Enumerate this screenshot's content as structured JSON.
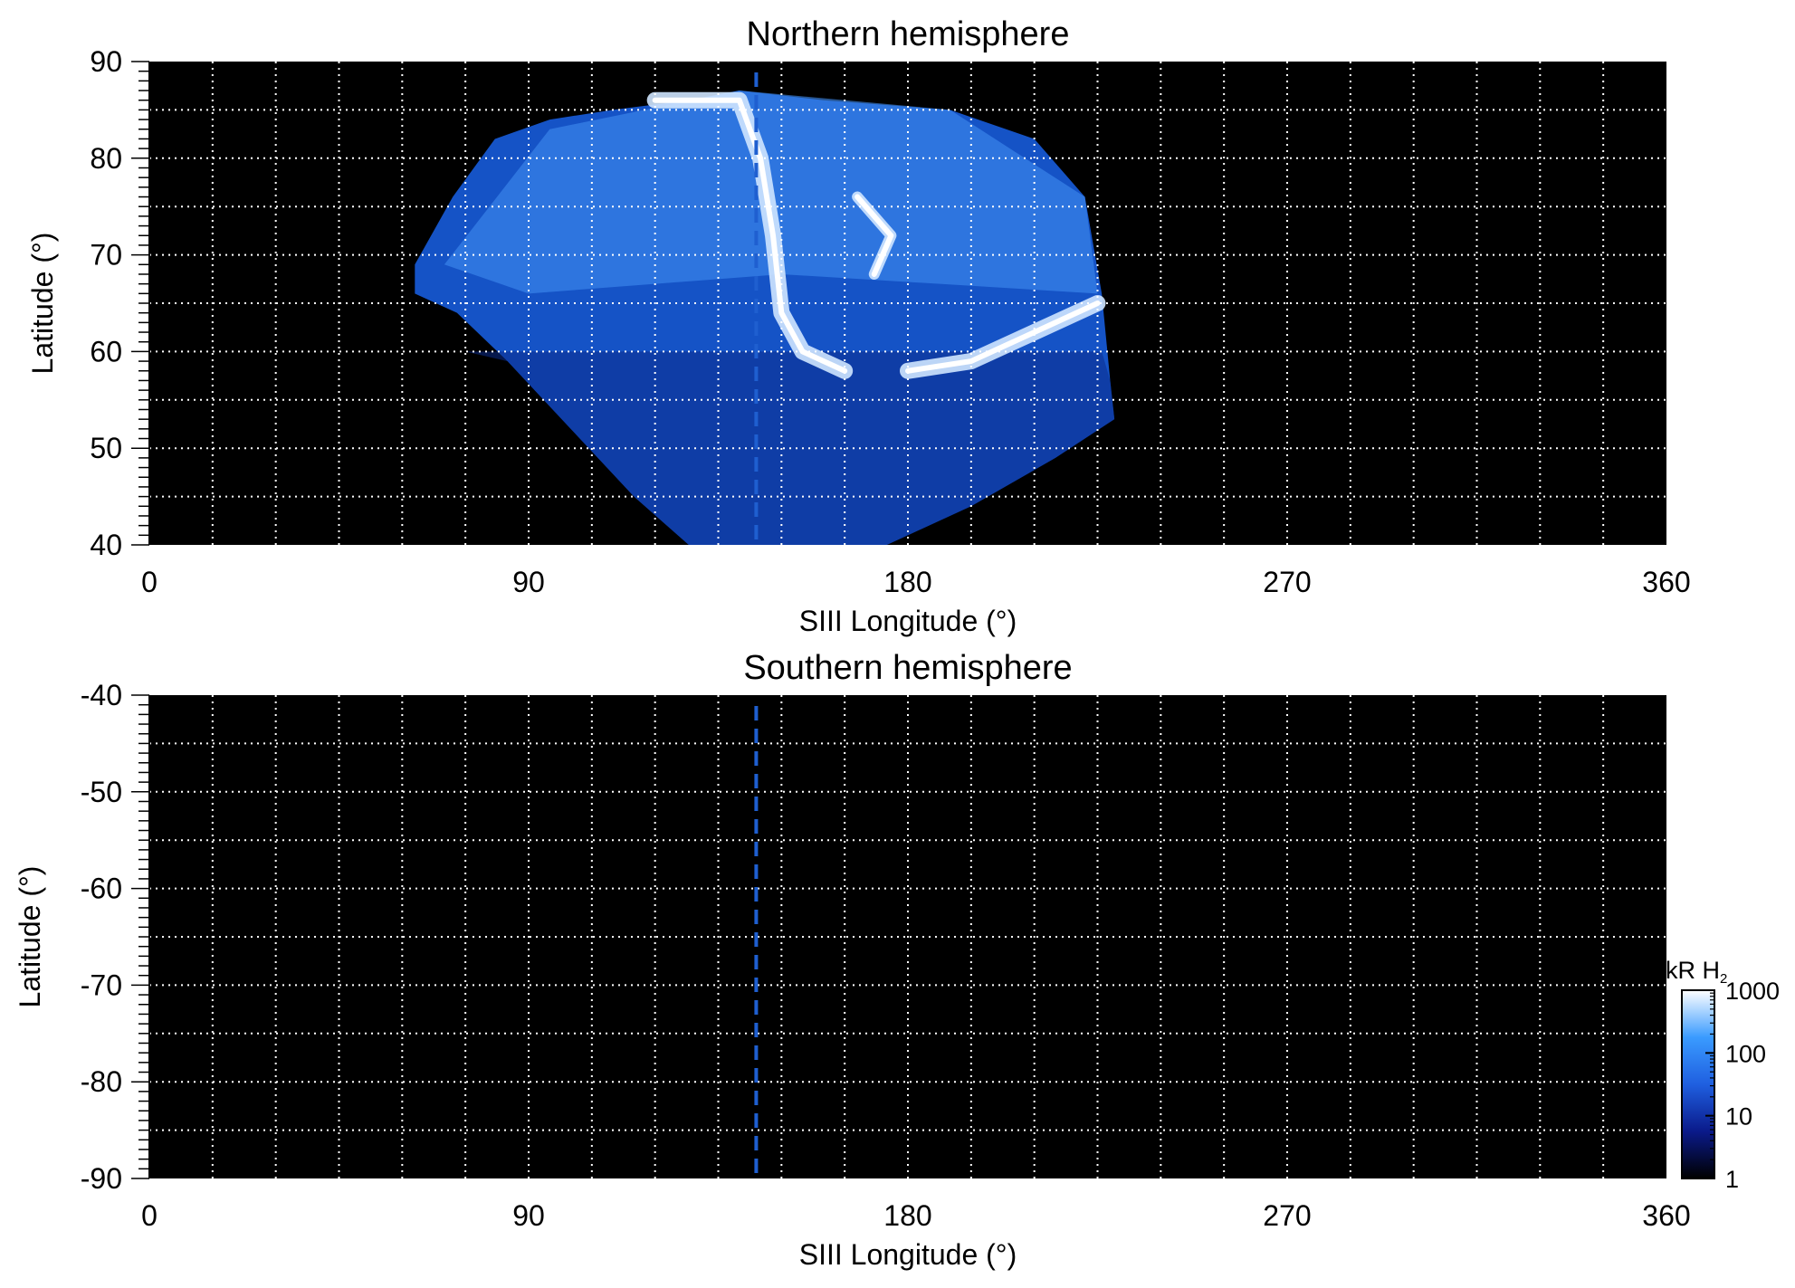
{
  "chart_data": [
    {
      "type": "heatmap",
      "title": "Northern hemisphere",
      "xlabel": "SIII Longitude (°)",
      "ylabel": "Latitude (°)",
      "xlim": [
        0,
        360
      ],
      "ylim": [
        40,
        90
      ],
      "xticks": [
        0,
        90,
        180,
        270,
        360
      ],
      "yticks": [
        40,
        50,
        60,
        70,
        80,
        90
      ],
      "xtick_labels": [
        "0",
        "90",
        "180",
        "270",
        "360"
      ],
      "ytick_labels": [
        "40",
        "50",
        "60",
        "70",
        "80",
        "90"
      ],
      "grid": true,
      "marker_longitude": 144,
      "coverage_region": {
        "lon_lat_outline": [
          [
            63,
            66
          ],
          [
            63,
            69
          ],
          [
            72,
            76
          ],
          [
            82,
            82
          ],
          [
            95,
            84
          ],
          [
            110,
            85
          ],
          [
            128,
            86
          ],
          [
            140,
            87
          ],
          [
            160,
            86
          ],
          [
            190,
            85
          ],
          [
            210,
            82
          ],
          [
            222,
            76
          ],
          [
            226,
            66
          ],
          [
            228,
            57
          ],
          [
            229,
            53
          ],
          [
            215,
            49
          ],
          [
            195,
            44
          ],
          [
            175,
            40
          ],
          [
            128,
            40
          ],
          [
            115,
            45
          ],
          [
            100,
            52
          ],
          [
            85,
            59
          ],
          [
            73,
            64
          ]
        ],
        "bright_features": [
          {
            "description_lon_lat": [
              [
                120,
                86
              ],
              [
                140,
                86
              ],
              [
                145,
                80
              ],
              [
                148,
                72
              ],
              [
                150,
                64
              ],
              [
                155,
                60
              ],
              [
                165,
                58
              ]
            ],
            "level_kR": 1000
          },
          {
            "description_lon_lat": [
              [
                180,
                58
              ],
              [
                195,
                59
              ],
              [
                210,
                62
              ],
              [
                225,
                65
              ]
            ],
            "level_kR": 1000
          },
          {
            "description_lon_lat": [
              [
                168,
                76
              ],
              [
                176,
                72
              ],
              [
                172,
                68
              ]
            ],
            "level_kR": 600
          }
        ]
      }
    },
    {
      "type": "heatmap",
      "title": "Southern hemisphere",
      "xlabel": "SIII Longitude (°)",
      "ylabel": "Latitude (°)",
      "xlim": [
        0,
        360
      ],
      "ylim": [
        -90,
        -40
      ],
      "xticks": [
        0,
        90,
        180,
        270,
        360
      ],
      "yticks": [
        -40,
        -50,
        -60,
        -70,
        -80,
        -90
      ],
      "xtick_labels": [
        "0",
        "90",
        "180",
        "270",
        "360"
      ],
      "ytick_labels": [
        "-40",
        "-50",
        "-60",
        "-70",
        "-80",
        "-90"
      ],
      "grid": true,
      "marker_longitude": 144
    }
  ],
  "colorbar": {
    "label": "kR H",
    "label_subscript": "2",
    "scale": "log",
    "range": [
      1,
      1000
    ],
    "ticks": [
      1,
      10,
      100,
      1000
    ],
    "tick_labels": [
      "1",
      "10",
      "100",
      "1000"
    ],
    "colors": [
      "#000000",
      "#0a1a8a",
      "#1f5fe0",
      "#3a9bff",
      "#ffffff"
    ]
  },
  "colors": {
    "background": "#000000",
    "grid": "#ffffff",
    "marker": "#1f5fd0"
  }
}
